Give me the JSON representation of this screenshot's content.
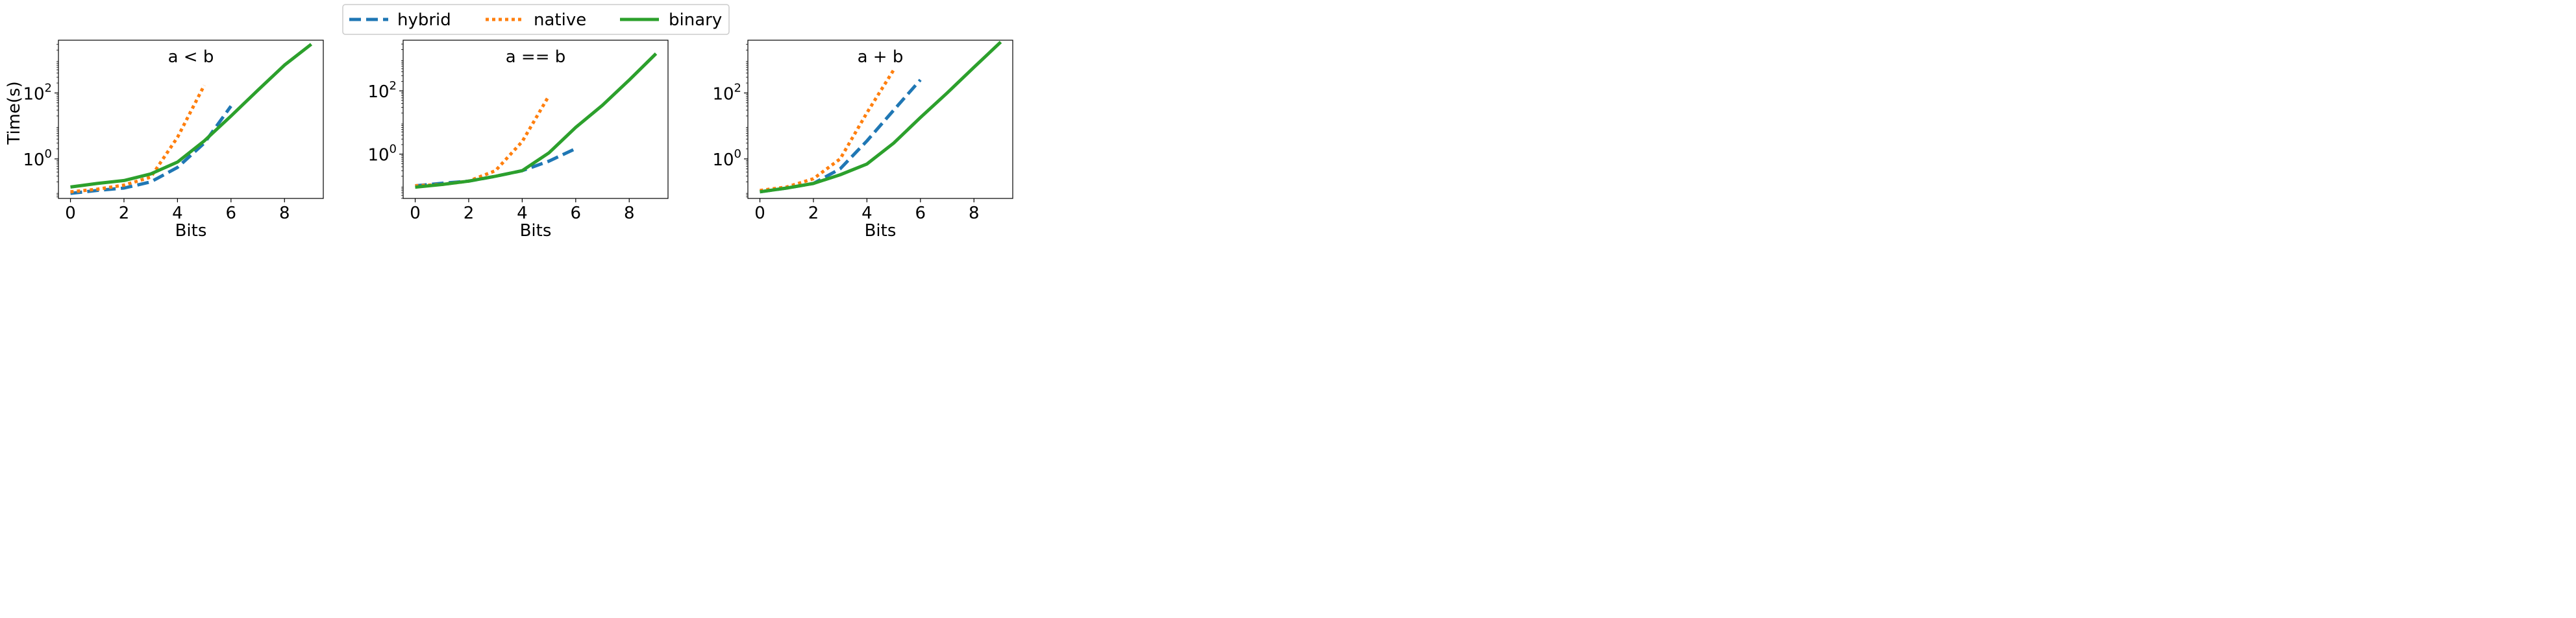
{
  "chart_data": [
    {
      "type": "line",
      "title": "a < b",
      "xlabel": "Bits",
      "ylabel": "Time(s)",
      "y_scale": "log",
      "xlim": [
        -0.45,
        9.45
      ],
      "ylim_log10": [
        -1.2,
        3.6
      ],
      "x_ticks": [
        0,
        2,
        4,
        6,
        8
      ],
      "x_tick_labels": [
        "0",
        "2",
        "4",
        "6",
        "8"
      ],
      "y_ticks_log10": [
        0,
        2
      ],
      "y_tick_labels": [
        {
          "base": "10",
          "exp": "0"
        },
        {
          "base": "10",
          "exp": "2"
        }
      ],
      "series": [
        {
          "name": "hybrid",
          "x": [
            0,
            1,
            2,
            3,
            4,
            5,
            6
          ],
          "y": [
            0.09,
            0.11,
            0.13,
            0.2,
            0.55,
            3.0,
            40
          ]
        },
        {
          "name": "native",
          "x": [
            0,
            1,
            2,
            3,
            4,
            5
          ],
          "y": [
            0.1,
            0.12,
            0.16,
            0.28,
            4.5,
            170
          ]
        },
        {
          "name": "binary",
          "x": [
            0,
            1,
            2,
            3,
            4,
            5,
            6,
            7,
            8,
            9
          ],
          "y": [
            0.14,
            0.18,
            0.22,
            0.35,
            0.8,
            3.5,
            20,
            120,
            700,
            3000
          ]
        }
      ]
    },
    {
      "type": "line",
      "title": "a == b",
      "xlabel": "Bits",
      "ylabel": "",
      "y_scale": "log",
      "xlim": [
        -0.45,
        9.45
      ],
      "ylim_log10": [
        -1.4,
        3.6
      ],
      "x_ticks": [
        0,
        2,
        4,
        6,
        8
      ],
      "x_tick_labels": [
        "0",
        "2",
        "4",
        "6",
        "8"
      ],
      "y_ticks_log10": [
        0,
        2
      ],
      "y_tick_labels": [
        {
          "base": "10",
          "exp": "0"
        },
        {
          "base": "10",
          "exp": "2"
        }
      ],
      "series": [
        {
          "name": "hybrid",
          "x": [
            0,
            1,
            2,
            3,
            4,
            5,
            6
          ],
          "y": [
            0.1,
            0.12,
            0.14,
            0.2,
            0.3,
            0.6,
            1.5
          ]
        },
        {
          "name": "native",
          "x": [
            0,
            1,
            2,
            3,
            4,
            5
          ],
          "y": [
            0.1,
            0.11,
            0.14,
            0.3,
            2.5,
            70
          ]
        },
        {
          "name": "binary",
          "x": [
            0,
            1,
            2,
            3,
            4,
            5,
            6,
            7,
            8,
            9
          ],
          "y": [
            0.09,
            0.11,
            0.14,
            0.2,
            0.3,
            1.1,
            7,
            35,
            220,
            1500
          ]
        }
      ]
    },
    {
      "type": "line",
      "title": "a + b",
      "xlabel": "Bits",
      "ylabel": "",
      "y_scale": "log",
      "xlim": [
        -0.45,
        9.45
      ],
      "ylim_log10": [
        -1.2,
        3.6
      ],
      "x_ticks": [
        0,
        2,
        4,
        6,
        8
      ],
      "x_tick_labels": [
        "0",
        "2",
        "4",
        "6",
        "8"
      ],
      "y_ticks_log10": [
        0,
        2
      ],
      "y_tick_labels": [
        {
          "base": "10",
          "exp": "0"
        },
        {
          "base": "10",
          "exp": "2"
        }
      ],
      "series": [
        {
          "name": "hybrid",
          "x": [
            0,
            1,
            2,
            3,
            4,
            5,
            6
          ],
          "y": [
            0.1,
            0.13,
            0.18,
            0.5,
            3.5,
            30,
            250
          ]
        },
        {
          "name": "native",
          "x": [
            0,
            1,
            2,
            3,
            4,
            5
          ],
          "y": [
            0.11,
            0.14,
            0.25,
            1.0,
            25,
            500
          ]
        },
        {
          "name": "binary",
          "x": [
            0,
            1,
            2,
            3,
            4,
            5,
            6,
            7,
            8,
            9
          ],
          "y": [
            0.1,
            0.13,
            0.18,
            0.33,
            0.7,
            3,
            18,
            100,
            600,
            3500
          ]
        }
      ]
    }
  ],
  "legend": {
    "placement": "top-center",
    "items": [
      {
        "label": "hybrid",
        "style": "dashed"
      },
      {
        "label": "native",
        "style": "dotted"
      },
      {
        "label": "binary",
        "style": "solid"
      }
    ]
  },
  "colors": {
    "hybrid": "#1f77b4",
    "native": "#ff7f0e",
    "binary": "#2ca02c"
  }
}
